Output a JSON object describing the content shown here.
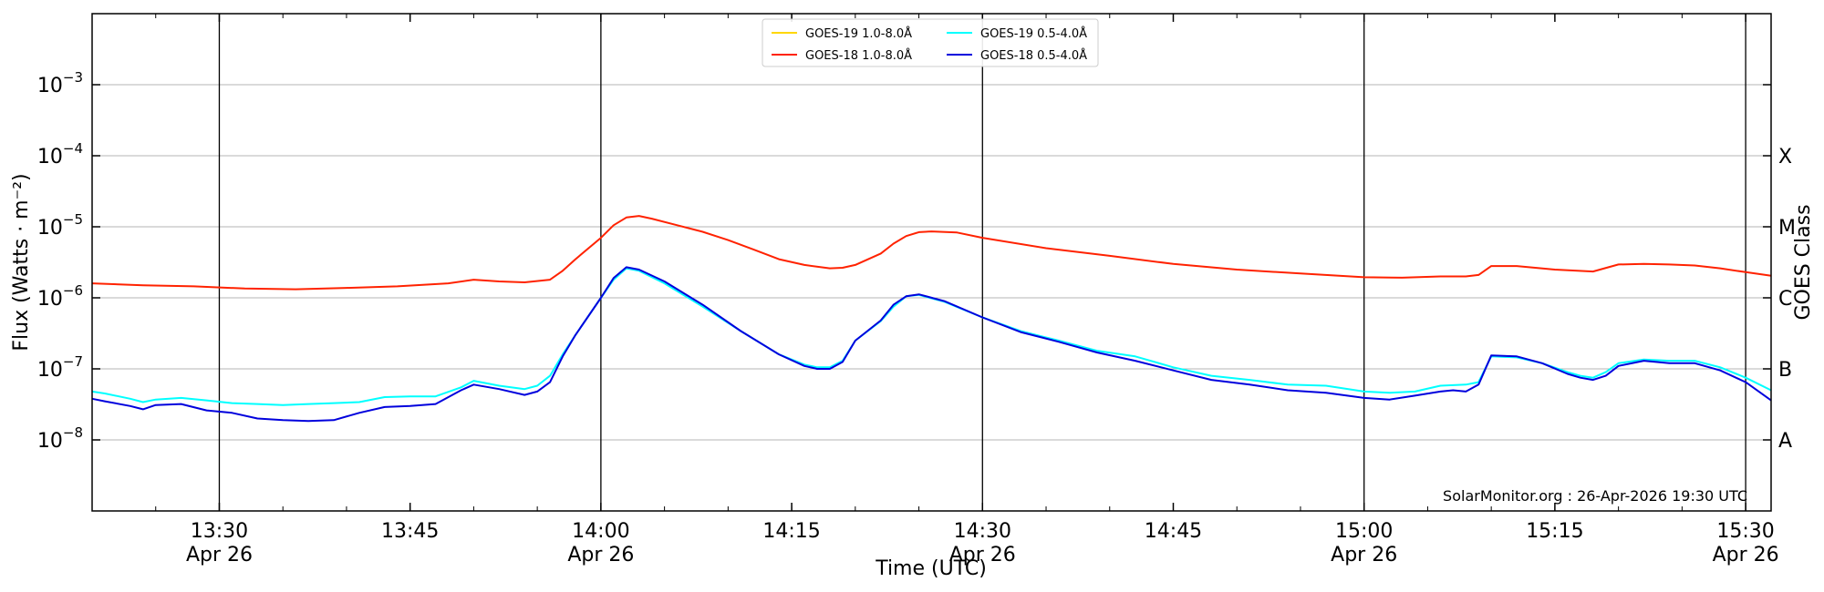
{
  "chart_data": {
    "type": "line",
    "title": "",
    "xlabel": "Time (UTC)",
    "ylabel": "Flux (Watts · m⁻²)",
    "y2label": "GOES Class",
    "yscale": "log",
    "ylim": [
      1e-09,
      0.01
    ],
    "xlim": [
      "13:20",
      "15:32"
    ],
    "x_tick_labels": [
      {
        "time": "13:30",
        "date": "Apr 26"
      },
      {
        "time": "13:45",
        "date": ""
      },
      {
        "time": "14:00",
        "date": "Apr 26"
      },
      {
        "time": "14:15",
        "date": ""
      },
      {
        "time": "14:30",
        "date": "Apr 26"
      },
      {
        "time": "14:45",
        "date": ""
      },
      {
        "time": "15:00",
        "date": "Apr 26"
      },
      {
        "time": "15:15",
        "date": ""
      },
      {
        "time": "15:30",
        "date": "Apr 26"
      }
    ],
    "y_tick_labels": [
      {
        "value": 1e-08,
        "label": "10",
        "exp": "−8"
      },
      {
        "value": 1e-07,
        "label": "10",
        "exp": "−7"
      },
      {
        "value": 1e-06,
        "label": "10",
        "exp": "−6"
      },
      {
        "value": 1e-05,
        "label": "10",
        "exp": "−5"
      },
      {
        "value": 0.0001,
        "label": "10",
        "exp": "−4"
      },
      {
        "value": 0.001,
        "label": "10",
        "exp": "−3"
      }
    ],
    "goes_classes": [
      {
        "label": "A",
        "value": 1e-08
      },
      {
        "label": "B",
        "value": 1e-07
      },
      {
        "label": "C",
        "value": 1e-06
      },
      {
        "label": "M",
        "value": 1e-05
      },
      {
        "label": "X",
        "value": 0.0001
      }
    ],
    "vertical_lines": [
      "13:30",
      "14:00",
      "14:30",
      "15:00",
      "15:30"
    ],
    "grid": true,
    "legend_position": "top-center",
    "annotation": "SolarMonitor.org : 26-Apr-2026 19:30 UTC",
    "series": [
      {
        "name": "GOES-19 1.0-8.0Å",
        "color": "#FFD700",
        "x": [],
        "values": []
      },
      {
        "name": "GOES-18 1.0-8.0Å",
        "color": "#FF2200",
        "x": [
          "13:20",
          "13:24",
          "13:28",
          "13:32",
          "13:36",
          "13:40",
          "13:44",
          "13:48",
          "13:50",
          "13:52",
          "13:54",
          "13:56",
          "13:57",
          "13:58",
          "14:00",
          "14:01",
          "14:02",
          "14:03",
          "14:04",
          "14:06",
          "14:08",
          "14:10",
          "14:12",
          "14:14",
          "14:16",
          "14:18",
          "14:19",
          "14:20",
          "14:22",
          "14:23",
          "14:24",
          "14:25",
          "14:26",
          "14:28",
          "14:30",
          "14:35",
          "14:40",
          "14:45",
          "14:50",
          "14:55",
          "15:00",
          "15:03",
          "15:06",
          "15:08",
          "15:09",
          "15:10",
          "15:12",
          "15:15",
          "15:18",
          "15:20",
          "15:22",
          "15:24",
          "15:26",
          "15:28",
          "15:30",
          "15:32"
        ],
        "values": [
          1.6e-06,
          1.5e-06,
          1.45e-06,
          1.35e-06,
          1.32e-06,
          1.38e-06,
          1.45e-06,
          1.6e-06,
          1.8e-06,
          1.7e-06,
          1.65e-06,
          1.8e-06,
          2.4e-06,
          3.5e-06,
          7e-06,
          1.05e-05,
          1.35e-05,
          1.42e-05,
          1.3e-05,
          1.05e-05,
          8.5e-06,
          6.5e-06,
          4.8e-06,
          3.5e-06,
          2.9e-06,
          2.6e-06,
          2.65e-06,
          2.9e-06,
          4.2e-06,
          5.8e-06,
          7.4e-06,
          8.4e-06,
          8.6e-06,
          8.3e-06,
          7e-06,
          5e-06,
          3.9e-06,
          3e-06,
          2.5e-06,
          2.2e-06,
          1.95e-06,
          1.92e-06,
          2e-06,
          2e-06,
          2.1e-06,
          2.8e-06,
          2.8e-06,
          2.5e-06,
          2.35e-06,
          2.95e-06,
          3e-06,
          2.95e-06,
          2.85e-06,
          2.6e-06,
          2.3e-06,
          2.05e-06
        ]
      },
      {
        "name": "GOES-19 0.5-4.0Å",
        "color": "#00FFFF",
        "x": [
          "13:20",
          "13:21",
          "13:23",
          "13:24",
          "13:25",
          "13:27",
          "13:29",
          "13:31",
          "13:33",
          "13:35",
          "13:37",
          "13:39",
          "13:41",
          "13:43",
          "13:45",
          "13:47",
          "13:49",
          "13:50",
          "13:52",
          "13:54",
          "13:55",
          "13:56",
          "13:57",
          "13:58",
          "14:00",
          "14:01",
          "14:02",
          "14:03",
          "14:05",
          "14:08",
          "14:11",
          "14:14",
          "14:16",
          "14:17",
          "14:18",
          "14:19",
          "14:20",
          "14:22",
          "14:23",
          "14:24",
          "14:25",
          "14:27",
          "14:30",
          "14:33",
          "14:36",
          "14:39",
          "14:42",
          "14:45",
          "14:48",
          "14:51",
          "14:54",
          "14:57",
          "15:00",
          "15:02",
          "15:04",
          "15:06",
          "15:07",
          "15:08",
          "15:09",
          "15:10",
          "15:12",
          "15:14",
          "15:16",
          "15:17",
          "15:18",
          "15:19",
          "15:20",
          "15:22",
          "15:24",
          "15:26",
          "15:28",
          "15:30",
          "15:32"
        ],
        "values": [
          4.8e-08,
          4.5e-08,
          3.8e-08,
          3.4e-08,
          3.7e-08,
          3.9e-08,
          3.6e-08,
          3.3e-08,
          3.2e-08,
          3.1e-08,
          3.2e-08,
          3.3e-08,
          3.4e-08,
          4e-08,
          4.1e-08,
          4.1e-08,
          5.5e-08,
          6.8e-08,
          5.8e-08,
          5.2e-08,
          5.8e-08,
          8e-08,
          1.6e-07,
          3e-07,
          1e-06,
          1.8e-06,
          2.6e-06,
          2.4e-06,
          1.6e-06,
          7.5e-07,
          3.4e-07,
          1.6e-07,
          1.15e-07,
          1.05e-07,
          1.05e-07,
          1.3e-07,
          2.5e-07,
          4.7e-07,
          7.5e-07,
          1.05e-06,
          1.1e-06,
          8.8e-07,
          5.3e-07,
          3.4e-07,
          2.5e-07,
          1.8e-07,
          1.5e-07,
          1.05e-07,
          8e-08,
          7e-08,
          6e-08,
          5.8e-08,
          4.8e-08,
          4.6e-08,
          4.8e-08,
          5.8e-08,
          5.9e-08,
          6e-08,
          6.5e-08,
          1.5e-07,
          1.45e-07,
          1.2e-07,
          9e-08,
          8e-08,
          7.5e-08,
          9e-08,
          1.2e-07,
          1.35e-07,
          1.3e-07,
          1.3e-07,
          1.05e-07,
          7.5e-08,
          5e-08
        ]
      },
      {
        "name": "GOES-18 0.5-4.0Å",
        "color": "#0000DD",
        "x": [
          "13:20",
          "13:21",
          "13:23",
          "13:24",
          "13:25",
          "13:27",
          "13:29",
          "13:31",
          "13:33",
          "13:35",
          "13:37",
          "13:39",
          "13:41",
          "13:43",
          "13:45",
          "13:47",
          "13:49",
          "13:50",
          "13:52",
          "13:54",
          "13:55",
          "13:56",
          "13:57",
          "13:58",
          "14:00",
          "14:01",
          "14:02",
          "14:03",
          "14:05",
          "14:08",
          "14:11",
          "14:14",
          "14:16",
          "14:17",
          "14:18",
          "14:19",
          "14:20",
          "14:22",
          "14:23",
          "14:24",
          "14:25",
          "14:27",
          "14:30",
          "14:33",
          "14:36",
          "14:39",
          "14:42",
          "14:45",
          "14:48",
          "14:51",
          "14:54",
          "14:57",
          "15:00",
          "15:02",
          "15:04",
          "15:06",
          "15:07",
          "15:08",
          "15:09",
          "15:10",
          "15:12",
          "15:14",
          "15:16",
          "15:17",
          "15:18",
          "15:19",
          "15:20",
          "15:22",
          "15:24",
          "15:26",
          "15:28",
          "15:30",
          "15:32"
        ],
        "values": [
          3.8e-08,
          3.5e-08,
          3e-08,
          2.7e-08,
          3.1e-08,
          3.2e-08,
          2.6e-08,
          2.4e-08,
          2e-08,
          1.9e-08,
          1.85e-08,
          1.9e-08,
          2.4e-08,
          2.9e-08,
          3e-08,
          3.2e-08,
          5e-08,
          6e-08,
          5.2e-08,
          4.3e-08,
          4.8e-08,
          6.5e-08,
          1.5e-07,
          3e-07,
          1e-06,
          1.9e-06,
          2.7e-06,
          2.5e-06,
          1.7e-06,
          8e-07,
          3.4e-07,
          1.6e-07,
          1.1e-07,
          1e-07,
          1e-07,
          1.25e-07,
          2.5e-07,
          4.8e-07,
          8e-07,
          1.05e-06,
          1.12e-06,
          9e-07,
          5.3e-07,
          3.3e-07,
          2.4e-07,
          1.7e-07,
          1.3e-07,
          9.5e-08,
          7e-08,
          6e-08,
          5e-08,
          4.6e-08,
          3.9e-08,
          3.7e-08,
          4.2e-08,
          4.8e-08,
          5e-08,
          4.8e-08,
          6e-08,
          1.55e-07,
          1.5e-07,
          1.2e-07,
          8.5e-08,
          7.5e-08,
          7e-08,
          8e-08,
          1.1e-07,
          1.3e-07,
          1.2e-07,
          1.2e-07,
          9.5e-08,
          6.5e-08,
          3.6e-08
        ]
      }
    ]
  }
}
